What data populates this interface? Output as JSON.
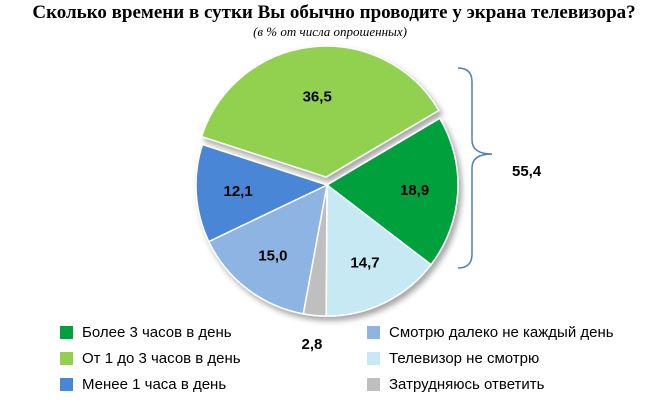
{
  "title": "Сколько времени в сутки Вы обычно проводите у экрана телевизора?",
  "subtitle": "(в % от числа опрошенных)",
  "chart_data": {
    "type": "pie",
    "slices": [
      {
        "label": "От 1 до 3 часов в день",
        "value": 36.5,
        "display": "36,5",
        "color": "#92D050"
      },
      {
        "label": "Более 3 часов в день",
        "value": 18.9,
        "display": "18,9",
        "color": "#00A03C"
      },
      {
        "label": "Телевизор не смотрю",
        "value": 14.7,
        "display": "14,7",
        "color": "#C6E9F4"
      },
      {
        "label": "Затрудняюсь ответить",
        "value": 2.8,
        "display": "2,8",
        "color": "#BFBFBF"
      },
      {
        "label": "Смотрю далеко не каждый день",
        "value": 15.0,
        "display": "15,0",
        "color": "#8DB4E2"
      },
      {
        "label": "Менее 1 часа в день",
        "value": 12.1,
        "display": "12,1",
        "color": "#4A86D6"
      }
    ],
    "bracket_total": "55,4",
    "legend": [
      {
        "label": "Более 3 часов в день",
        "color": "#00A03C"
      },
      {
        "label": "От 1 до 3 часов в день",
        "color": "#92D050"
      },
      {
        "label": "Менее 1 часа в день",
        "color": "#4A86D6"
      },
      {
        "label": "Смотрю далеко не каждый день",
        "color": "#8DB4E2"
      },
      {
        "label": "Телевизор не смотрю",
        "color": "#C6E9F4"
      },
      {
        "label": "Затрудняюсь ответить",
        "color": "#BFBFBF"
      }
    ],
    "legend_placement": "bottom"
  }
}
